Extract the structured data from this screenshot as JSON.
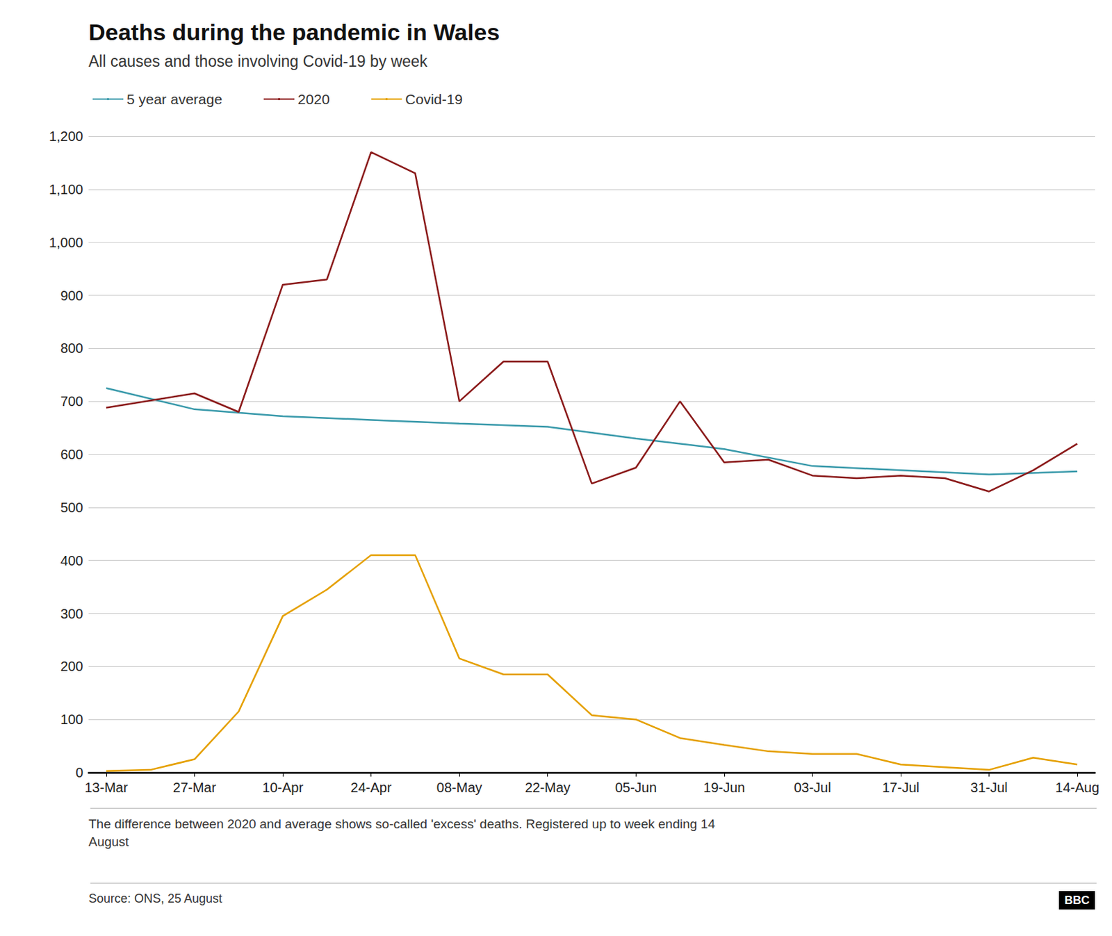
{
  "chart_data": {
    "type": "line",
    "title": "Deaths during the pandemic in Wales",
    "subtitle": "All causes and those involving Covid-19 by week",
    "footnote": "The difference between 2020 and average shows so-called 'excess' deaths. Registered up to week ending 14\nAugust",
    "source": "Source: ONS, 25 August",
    "annotations": [
      "BBC"
    ],
    "series": [
      {
        "name": "5 year average",
        "color": "#3a9aab",
        "x": [
          0,
          2,
          4,
          6,
          8,
          10,
          12,
          14,
          16,
          18,
          20,
          22
        ],
        "values": [
          725,
          685,
          672,
          665,
          658,
          652,
          630,
          610,
          578,
          570,
          562,
          568
        ]
      },
      {
        "name": "2020",
        "color": "#8b1a1a",
        "x": [
          0,
          2,
          3,
          4,
          5,
          6,
          7,
          8,
          9,
          10,
          11,
          12,
          13,
          14,
          15,
          16,
          17,
          18,
          19,
          20,
          21,
          22
        ],
        "values": [
          688,
          715,
          680,
          920,
          930,
          1170,
          1130,
          700,
          775,
          775,
          545,
          575,
          700,
          585,
          590,
          560,
          555,
          560,
          555,
          530,
          570,
          620
        ]
      },
      {
        "name": "Covid-19",
        "color": "#e5a000",
        "x": [
          0,
          1,
          2,
          3,
          4,
          5,
          6,
          7,
          8,
          9,
          10,
          11,
          12,
          13,
          14,
          15,
          16,
          17,
          18,
          19,
          20,
          21,
          22
        ],
        "values": [
          3,
          5,
          25,
          115,
          295,
          345,
          410,
          410,
          215,
          185,
          185,
          108,
          100,
          65,
          52,
          40,
          35,
          35,
          15,
          10,
          5,
          28,
          15
        ]
      }
    ],
    "xlim": [
      -0.4,
      22.4
    ],
    "xticks": [
      {
        "value": 0,
        "label": "13-Mar"
      },
      {
        "value": 2,
        "label": "27-Mar"
      },
      {
        "value": 4,
        "label": "10-Apr"
      },
      {
        "value": 6,
        "label": "24-Apr"
      },
      {
        "value": 8,
        "label": "08-May"
      },
      {
        "value": 10,
        "label": "22-May"
      },
      {
        "value": 12,
        "label": "05-Jun"
      },
      {
        "value": 14,
        "label": "19-Jun"
      },
      {
        "value": 16,
        "label": "03-Jul"
      },
      {
        "value": 18,
        "label": "17-Jul"
      },
      {
        "value": 20,
        "label": "31-Jul"
      },
      {
        "value": 22,
        "label": "14-Aug"
      }
    ],
    "ylim": [
      0,
      1200
    ],
    "yticks": [
      0,
      100,
      200,
      300,
      400,
      500,
      600,
      700,
      800,
      900,
      {
        "value": 1000,
        "label": "1,000"
      },
      {
        "value": 1100,
        "label": "1,100"
      },
      {
        "value": 1200,
        "label": "1,200"
      }
    ],
    "grid": true,
    "legend": "top"
  }
}
